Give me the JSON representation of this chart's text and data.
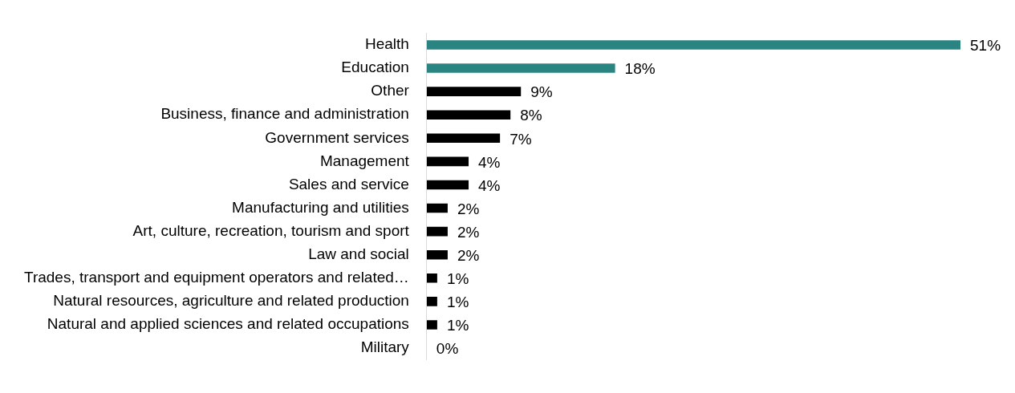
{
  "chart_data": {
    "type": "bar",
    "orientation": "horizontal",
    "categories": [
      "Health",
      "Education",
      "Other",
      "Business, finance and administration",
      "Government services",
      "Management",
      "Sales and service",
      "Manufacturing and utilities",
      "Art, culture, recreation, tourism and sport",
      "Law and social",
      "Trades, transport and equipment operators and related…",
      "Natural resources, agriculture and related production",
      "Natural and applied sciences and related occupations",
      "Military"
    ],
    "values": [
      51,
      18,
      9,
      8,
      7,
      4,
      4,
      2,
      2,
      2,
      1,
      1,
      1,
      0
    ],
    "value_labels": [
      "51%",
      "18%",
      "9%",
      "8%",
      "7%",
      "4%",
      "4%",
      "2%",
      "2%",
      "2%",
      "1%",
      "1%",
      "1%",
      "0%"
    ],
    "colors": [
      "#2a8482",
      "#2a8482",
      "#000000",
      "#000000",
      "#000000",
      "#000000",
      "#000000",
      "#000000",
      "#000000",
      "#000000",
      "#000000",
      "#000000",
      "#000000",
      "#000000"
    ],
    "legend": false
  }
}
